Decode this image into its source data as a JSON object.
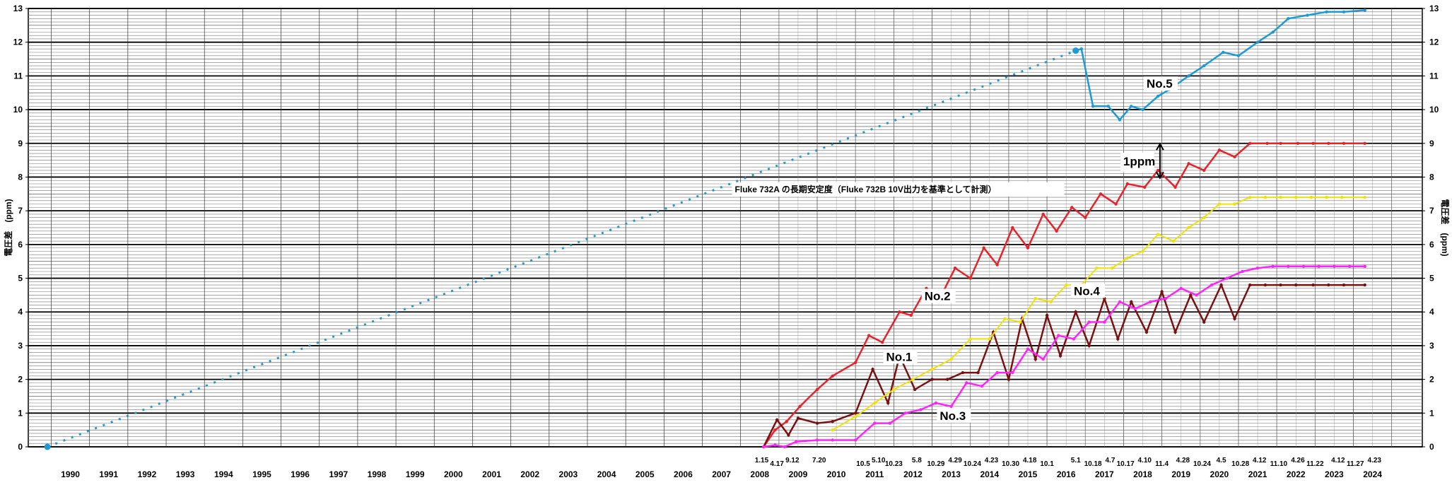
{
  "chart_data": {
    "type": "line",
    "title": "Fluke 732A の長期安定度（Fluke 732B 10V出力を基準として計測）",
    "ylabel_left": "電圧差　(ppm)",
    "ylabel_right": "電圧差　(ppm)",
    "ylim": [
      0,
      13
    ],
    "y_ticks": [
      "0",
      "1",
      "2",
      "3",
      "4",
      "5",
      "6",
      "7",
      "8",
      "9",
      "10",
      "11",
      "12",
      "13"
    ],
    "x_years": [
      "1990",
      "1991",
      "1992",
      "1993",
      "1994",
      "1995",
      "1996",
      "1997",
      "1998",
      "1999",
      "2000",
      "2001",
      "2002",
      "2003",
      "2004",
      "2005",
      "2006",
      "2007",
      "2008",
      "2009",
      "2010",
      "2011",
      "2012",
      "2013",
      "2014",
      "2015",
      "2016",
      "2017",
      "2018",
      "2019",
      "2020",
      "2021",
      "2022",
      "2023",
      "2024"
    ],
    "date_labels": [
      "1.15",
      "4.17",
      "9.12",
      "7.20",
      "10.5",
      "5.10",
      "10.23",
      "5.8",
      "10.29",
      "4.29",
      "10.24",
      "4.23",
      "10.30",
      "4.18",
      "10.1",
      "5.1",
      "10.18",
      "4.7",
      "10.17",
      "4.10",
      "11.4",
      "4.28",
      "10.24",
      "4.5",
      "10.28",
      "4.12",
      "11.10",
      "4.26",
      "11.22",
      "4.12",
      "11.27",
      "4.23"
    ],
    "annotation": "1ppm",
    "grid": true,
    "series": [
      {
        "name": "No.5",
        "color": "#1a9ad6",
        "x": [
          1989.9,
          2016.75,
          2016.9,
          2017.2,
          2017.6,
          2017.9,
          2018.2,
          2018.5,
          2018.9,
          2019.2,
          2019.7,
          2020.1,
          2020.6,
          2021.0,
          2021.5,
          2021.9,
          2022.3,
          2022.8,
          2023.3,
          2023.75,
          2024.3
        ],
        "y": [
          0.0,
          11.75,
          11.8,
          10.1,
          10.1,
          9.7,
          10.1,
          10.0,
          10.4,
          10.6,
          11.0,
          11.3,
          11.7,
          11.6,
          12.0,
          12.3,
          12.7,
          12.8,
          12.9,
          12.9,
          12.95
        ]
      },
      {
        "name": "No.2",
        "color": "#e8222a",
        "x": [
          2008.6,
          2008.9,
          2009.2,
          2009.55,
          2010.0,
          2010.4,
          2011.0,
          2011.35,
          2011.7,
          2012.15,
          2012.45,
          2012.85,
          2013.2,
          2013.6,
          2014.0,
          2014.35,
          2014.7,
          2015.1,
          2015.5,
          2015.9,
          2016.25,
          2016.65,
          2017.0,
          2017.4,
          2017.8,
          2018.1,
          2018.55,
          2018.9,
          2019.35,
          2019.7,
          2020.1,
          2020.5,
          2020.9,
          2021.3,
          2021.75,
          2022.1,
          2022.55,
          2022.95,
          2023.35,
          2023.75,
          2024.3
        ],
        "y": [
          0.0,
          0.5,
          0.75,
          1.2,
          1.7,
          2.1,
          2.5,
          3.3,
          3.1,
          4.0,
          3.9,
          4.7,
          4.4,
          5.3,
          5.0,
          5.9,
          5.4,
          6.5,
          5.9,
          6.9,
          6.4,
          7.1,
          6.8,
          7.5,
          7.2,
          7.8,
          7.7,
          8.2,
          7.7,
          8.4,
          8.2,
          8.8,
          8.6,
          9.0,
          9.0,
          9.0,
          9.0,
          9.0,
          9.0,
          9.0,
          9.0
        ]
      },
      {
        "name": "No.1",
        "color": "#7a1010",
        "x": [
          2008.6,
          2008.95,
          2009.25,
          2009.5,
          2010.0,
          2010.4,
          2011.0,
          2011.45,
          2011.85,
          2012.15,
          2012.55,
          2013.0,
          2013.4,
          2013.8,
          2014.2,
          2014.6,
          2015.0,
          2015.35,
          2015.7,
          2016.0,
          2016.35,
          2016.75,
          2017.1,
          2017.5,
          2017.85,
          2018.2,
          2018.6,
          2019.0,
          2019.35,
          2019.75,
          2020.1,
          2020.55,
          2020.9,
          2021.3,
          2021.7,
          2022.1,
          2022.5,
          2022.95,
          2023.35,
          2023.75,
          2024.3
        ],
        "y": [
          0.0,
          0.8,
          0.35,
          0.85,
          0.7,
          0.75,
          1.0,
          2.3,
          1.3,
          2.7,
          1.7,
          2.0,
          2.0,
          2.2,
          2.2,
          3.4,
          2.0,
          3.8,
          2.6,
          3.9,
          2.7,
          4.0,
          3.0,
          4.4,
          3.2,
          4.3,
          3.4,
          4.6,
          3.4,
          4.5,
          3.7,
          4.8,
          3.8,
          4.8,
          4.8,
          4.8,
          4.8,
          4.8,
          4.8,
          4.8,
          4.8
        ]
      },
      {
        "name": "No.4",
        "color": "#f2e000",
        "x": [
          2010.4,
          2011.0,
          2011.5,
          2012.0,
          2012.5,
          2013.0,
          2013.5,
          2014.0,
          2014.5,
          2014.9,
          2015.3,
          2015.7,
          2016.1,
          2016.5,
          2016.9,
          2017.3,
          2017.7,
          2018.1,
          2018.5,
          2018.9,
          2019.3,
          2019.7,
          2020.1,
          2020.5,
          2020.9,
          2021.3,
          2021.7,
          2022.1,
          2022.5,
          2022.9,
          2023.3,
          2023.7,
          2024.3
        ],
        "y": [
          0.5,
          0.9,
          1.3,
          1.7,
          2.0,
          2.3,
          2.6,
          3.2,
          3.2,
          3.8,
          3.7,
          4.4,
          4.3,
          4.8,
          4.8,
          5.3,
          5.3,
          5.6,
          5.8,
          6.3,
          6.1,
          6.5,
          6.8,
          7.2,
          7.2,
          7.4,
          7.4,
          7.4,
          7.4,
          7.4,
          7.4,
          7.4,
          7.4
        ]
      },
      {
        "name": "No.3",
        "color": "#ff22ff",
        "x": [
          2008.6,
          2008.9,
          2009.15,
          2009.45,
          2010.0,
          2010.4,
          2011.0,
          2011.5,
          2011.9,
          2012.3,
          2012.7,
          2013.1,
          2013.5,
          2013.9,
          2014.3,
          2014.7,
          2015.1,
          2015.5,
          2015.9,
          2016.3,
          2016.7,
          2017.1,
          2017.5,
          2017.9,
          2018.3,
          2018.7,
          2019.1,
          2019.5,
          2019.9,
          2020.3,
          2020.7,
          2021.1,
          2021.5,
          2021.9,
          2022.3,
          2022.7,
          2023.1,
          2023.5,
          2023.9,
          2024.3
        ],
        "y": [
          0.0,
          0.05,
          0.0,
          0.15,
          0.2,
          0.2,
          0.2,
          0.7,
          0.7,
          1.0,
          1.1,
          1.3,
          1.2,
          1.9,
          1.8,
          2.2,
          2.2,
          2.9,
          2.6,
          3.3,
          3.2,
          3.7,
          3.7,
          4.3,
          4.1,
          4.3,
          4.4,
          4.7,
          4.5,
          4.8,
          5.0,
          5.2,
          5.3,
          5.35,
          5.35,
          5.35,
          5.35,
          5.35,
          5.35,
          5.35
        ]
      }
    ]
  }
}
